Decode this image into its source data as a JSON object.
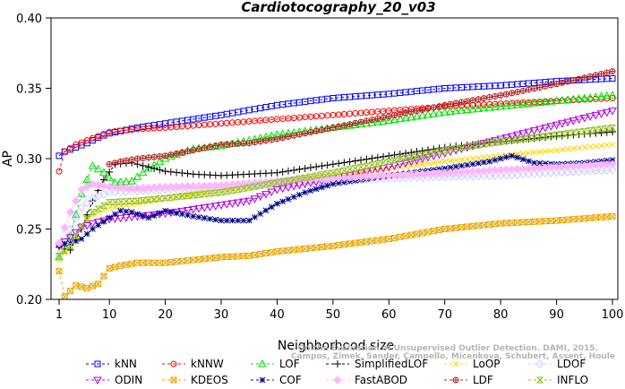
{
  "chart_data": {
    "type": "line",
    "title": "Cardiotocography_20_v03",
    "xlabel": "Neighborhood size",
    "ylabel": "AP",
    "xlim": [
      1,
      100
    ],
    "ylim": [
      0.2,
      0.4
    ],
    "xticks": [
      1,
      10,
      20,
      30,
      40,
      50,
      60,
      70,
      80,
      90,
      100
    ],
    "yticks": [
      0.2,
      0.25,
      0.3,
      0.35,
      0.4
    ],
    "ytick_labels": [
      "0.20",
      "0.25",
      "0.30",
      "0.35",
      "0.40"
    ],
    "grid": false,
    "legend_position": "bottom",
    "citation": [
      "Campos, Zimek, Sander, Campello, Micenkova, Schubert, Assent, Houle",
      "On the Evaluation of Unsupervised Outlier Detection. DAMI, 2015."
    ],
    "series": [
      {
        "name": "kNN",
        "color": "#0000ff",
        "marker": "square",
        "dash": "3,3",
        "points": [
          [
            1,
            0.302
          ],
          [
            2,
            0.305
          ],
          [
            4,
            0.308
          ],
          [
            6,
            0.311
          ],
          [
            8,
            0.315
          ],
          [
            10,
            0.318
          ],
          [
            15,
            0.322
          ],
          [
            20,
            0.325
          ],
          [
            30,
            0.331
          ],
          [
            40,
            0.338
          ],
          [
            50,
            0.343
          ],
          [
            60,
            0.346
          ],
          [
            70,
            0.35
          ],
          [
            80,
            0.352
          ],
          [
            90,
            0.355
          ],
          [
            100,
            0.357
          ]
        ]
      },
      {
        "name": "kNNW",
        "color": "#ff0000",
        "marker": "circle",
        "dash": "3,3",
        "points": [
          [
            1,
            0.291
          ],
          [
            2,
            0.305
          ],
          [
            4,
            0.31
          ],
          [
            6,
            0.313
          ],
          [
            8,
            0.316
          ],
          [
            10,
            0.319
          ],
          [
            15,
            0.321
          ],
          [
            20,
            0.322
          ],
          [
            30,
            0.325
          ],
          [
            40,
            0.328
          ],
          [
            50,
            0.331
          ],
          [
            60,
            0.334
          ],
          [
            70,
            0.337
          ],
          [
            80,
            0.339
          ],
          [
            90,
            0.341
          ],
          [
            100,
            0.343
          ]
        ]
      },
      {
        "name": "LOF",
        "color": "#00e000",
        "marker": "triangle",
        "dash": "3,3",
        "points": [
          [
            1,
            0.23
          ],
          [
            3,
            0.245
          ],
          [
            5,
            0.275
          ],
          [
            7,
            0.295
          ],
          [
            9,
            0.29
          ],
          [
            11,
            0.283
          ],
          [
            14,
            0.284
          ],
          [
            17,
            0.293
          ],
          [
            20,
            0.3
          ],
          [
            25,
            0.307
          ],
          [
            30,
            0.309
          ],
          [
            40,
            0.317
          ],
          [
            50,
            0.322
          ],
          [
            60,
            0.327
          ],
          [
            70,
            0.333
          ],
          [
            80,
            0.337
          ],
          [
            90,
            0.341
          ],
          [
            100,
            0.345
          ]
        ]
      },
      {
        "name": "SimplifiedLOF",
        "color": "#000000",
        "marker": "plus",
        "dash": "3,3",
        "points": [
          [
            1,
            0.237
          ],
          [
            3,
            0.235
          ],
          [
            5,
            0.25
          ],
          [
            7,
            0.27
          ],
          [
            9,
            0.285
          ],
          [
            11,
            0.296
          ],
          [
            14,
            0.297
          ],
          [
            17,
            0.294
          ],
          [
            20,
            0.291
          ],
          [
            25,
            0.289
          ],
          [
            30,
            0.288
          ],
          [
            40,
            0.29
          ],
          [
            50,
            0.296
          ],
          [
            60,
            0.302
          ],
          [
            70,
            0.308
          ],
          [
            80,
            0.312
          ],
          [
            90,
            0.316
          ],
          [
            100,
            0.319
          ]
        ]
      },
      {
        "name": "LoOP",
        "color": "#ffd700",
        "marker": "x",
        "dash": "3,3",
        "points": [
          [
            1,
            0.228
          ],
          [
            3,
            0.238
          ],
          [
            5,
            0.252
          ],
          [
            7,
            0.26
          ],
          [
            10,
            0.265
          ],
          [
            15,
            0.268
          ],
          [
            20,
            0.272
          ],
          [
            30,
            0.278
          ],
          [
            40,
            0.283
          ],
          [
            50,
            0.288
          ],
          [
            60,
            0.293
          ],
          [
            70,
            0.298
          ],
          [
            80,
            0.302
          ],
          [
            90,
            0.306
          ],
          [
            100,
            0.31
          ]
        ]
      },
      {
        "name": "LDOF",
        "color": "#ccccff",
        "marker": "diamond",
        "dash": "3,3",
        "points": [
          [
            1,
            0.232
          ],
          [
            3,
            0.25
          ],
          [
            5,
            0.265
          ],
          [
            7,
            0.272
          ],
          [
            10,
            0.276
          ],
          [
            15,
            0.277
          ],
          [
            20,
            0.278
          ],
          [
            30,
            0.28
          ],
          [
            40,
            0.282
          ],
          [
            50,
            0.284
          ],
          [
            60,
            0.286
          ],
          [
            70,
            0.287
          ],
          [
            80,
            0.288
          ],
          [
            90,
            0.29
          ],
          [
            100,
            0.292
          ]
        ]
      },
      {
        "name": "ODIN",
        "color": "#b000e0",
        "marker": "triangle-down",
        "dash": "3,3",
        "points": [
          [
            1,
            0.238
          ],
          [
            3,
            0.244
          ],
          [
            5,
            0.251
          ],
          [
            7,
            0.254
          ],
          [
            10,
            0.257
          ],
          [
            15,
            0.259
          ],
          [
            20,
            0.261
          ],
          [
            25,
            0.264
          ],
          [
            30,
            0.267
          ],
          [
            35,
            0.27
          ],
          [
            40,
            0.278
          ],
          [
            50,
            0.286
          ],
          [
            60,
            0.294
          ],
          [
            70,
            0.304
          ],
          [
            80,
            0.314
          ],
          [
            90,
            0.324
          ],
          [
            100,
            0.334
          ]
        ]
      },
      {
        "name": "KDEOS",
        "color": "#e6a800",
        "marker": "square-x",
        "dash": "3,3",
        "points": [
          [
            1,
            0.22
          ],
          [
            2,
            0.202
          ],
          [
            4,
            0.21
          ],
          [
            6,
            0.208
          ],
          [
            8,
            0.211
          ],
          [
            10,
            0.222
          ],
          [
            12,
            0.224
          ],
          [
            15,
            0.226
          ],
          [
            20,
            0.226
          ],
          [
            25,
            0.228
          ],
          [
            30,
            0.23
          ],
          [
            35,
            0.231
          ],
          [
            40,
            0.234
          ],
          [
            50,
            0.238
          ],
          [
            60,
            0.243
          ],
          [
            70,
            0.25
          ],
          [
            80,
            0.254
          ],
          [
            90,
            0.256
          ],
          [
            100,
            0.259
          ]
        ]
      },
      {
        "name": "COF",
        "color": "#00008b",
        "marker": "asterisk",
        "dash": "3,3",
        "points": [
          [
            1,
            0.239
          ],
          [
            3,
            0.24
          ],
          [
            5,
            0.243
          ],
          [
            7,
            0.25
          ],
          [
            10,
            0.258
          ],
          [
            12,
            0.263
          ],
          [
            14,
            0.262
          ],
          [
            17,
            0.258
          ],
          [
            20,
            0.263
          ],
          [
            25,
            0.259
          ],
          [
            30,
            0.256
          ],
          [
            35,
            0.256
          ],
          [
            40,
            0.268
          ],
          [
            45,
            0.276
          ],
          [
            50,
            0.282
          ],
          [
            60,
            0.288
          ],
          [
            70,
            0.293
          ],
          [
            78,
            0.298
          ],
          [
            82,
            0.302
          ],
          [
            86,
            0.297
          ],
          [
            90,
            0.296
          ],
          [
            95,
            0.297
          ],
          [
            100,
            0.299
          ]
        ]
      },
      {
        "name": "FastABOD",
        "color": "#ffb6ff",
        "marker": "diamond-filled",
        "dash": "3,3",
        "points": [
          [
            1,
            0.24
          ],
          [
            3,
            0.262
          ],
          [
            5,
            0.278
          ],
          [
            7,
            0.282
          ],
          [
            10,
            0.28
          ],
          [
            15,
            0.279
          ],
          [
            20,
            0.28
          ],
          [
            30,
            0.281
          ],
          [
            40,
            0.284
          ],
          [
            50,
            0.286
          ],
          [
            60,
            0.288
          ],
          [
            70,
            0.29
          ],
          [
            80,
            0.292
          ],
          [
            90,
            0.294
          ],
          [
            100,
            0.296
          ]
        ]
      },
      {
        "name": "LDF",
        "color": "#b22222",
        "marker": "circle-plus",
        "dash": "3,3",
        "points": [
          [
            10,
            0.296
          ],
          [
            12,
            0.298
          ],
          [
            15,
            0.3
          ],
          [
            20,
            0.302
          ],
          [
            25,
            0.306
          ],
          [
            30,
            0.31
          ],
          [
            35,
            0.311
          ],
          [
            40,
            0.314
          ],
          [
            50,
            0.322
          ],
          [
            60,
            0.33
          ],
          [
            70,
            0.338
          ],
          [
            80,
            0.345
          ],
          [
            90,
            0.353
          ],
          [
            100,
            0.362
          ]
        ]
      },
      {
        "name": "INFLO",
        "color": "#90c020",
        "marker": "hourglass",
        "dash": "3,3",
        "points": [
          [
            1,
            0.231
          ],
          [
            3,
            0.238
          ],
          [
            5,
            0.252
          ],
          [
            7,
            0.262
          ],
          [
            10,
            0.269
          ],
          [
            15,
            0.27
          ],
          [
            20,
            0.272
          ],
          [
            30,
            0.276
          ],
          [
            40,
            0.283
          ],
          [
            50,
            0.29
          ],
          [
            60,
            0.298
          ],
          [
            70,
            0.306
          ],
          [
            80,
            0.312
          ],
          [
            90,
            0.317
          ],
          [
            100,
            0.322
          ]
        ]
      }
    ]
  }
}
